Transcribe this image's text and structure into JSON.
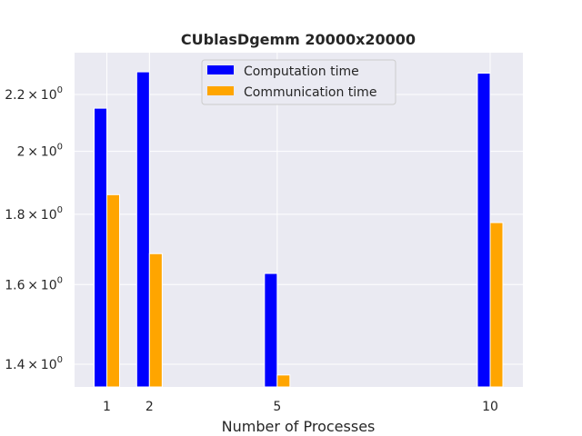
{
  "chart_data": {
    "type": "bar",
    "title": "CUblasDgemm 20000x20000",
    "xlabel": "Number of Processes",
    "ylabel": "",
    "yscale": "log",
    "ylim": [
      1.33,
      2.32
    ],
    "x": [
      1,
      2,
      5,
      10
    ],
    "x_tick_labels": [
      "1",
      "2",
      "5",
      "10"
    ],
    "y_ticks": [
      {
        "value": 1.4,
        "mantissa": "1.4",
        "base": "10",
        "exp": "0"
      },
      {
        "value": 1.6,
        "mantissa": "1.6",
        "base": "10",
        "exp": "0"
      },
      {
        "value": 1.8,
        "mantissa": "1.8",
        "base": "10",
        "exp": "0"
      },
      {
        "value": 2.0,
        "mantissa": "2",
        "base": "10",
        "exp": "0"
      },
      {
        "value": 2.2,
        "mantissa": "2.2",
        "base": "10",
        "exp": "0"
      }
    ],
    "series": [
      {
        "name": "Computation time",
        "color": "#0000ff",
        "values": [
          2.15,
          2.285,
          1.63,
          2.28
        ]
      },
      {
        "name": "Communication time",
        "color": "#ffa500",
        "values": [
          1.86,
          1.685,
          1.375,
          1.775
        ]
      }
    ],
    "grid": true,
    "legend_position": "top-center",
    "background": "#eaeaf2"
  }
}
